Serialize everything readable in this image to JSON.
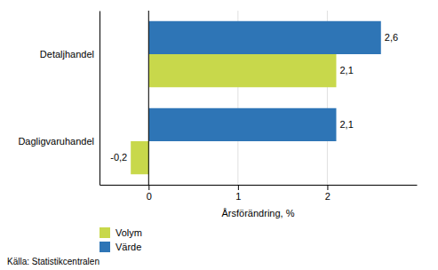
{
  "chart_data": {
    "type": "bar",
    "orientation": "horizontal",
    "categories": [
      "Dagligvaruhandel",
      "Detaljhandel"
    ],
    "series": [
      {
        "name": "Volym",
        "color": "#c8d84b",
        "values": [
          -0.2,
          2.1
        ],
        "value_labels": [
          "-0,2",
          "2,1"
        ]
      },
      {
        "name": "Värde",
        "color": "#2e75b6",
        "values": [
          2.1,
          2.6
        ],
        "value_labels": [
          "2,1",
          "2,6"
        ]
      }
    ],
    "xlabel": "Årsförändring, %",
    "xlim": [
      -0.55,
      3.0
    ],
    "xticks": [
      0,
      1,
      2
    ],
    "grid": true,
    "data_labels": true,
    "legend": "bottom",
    "annotations": [
      "Källa: Statistikcentralen"
    ]
  }
}
